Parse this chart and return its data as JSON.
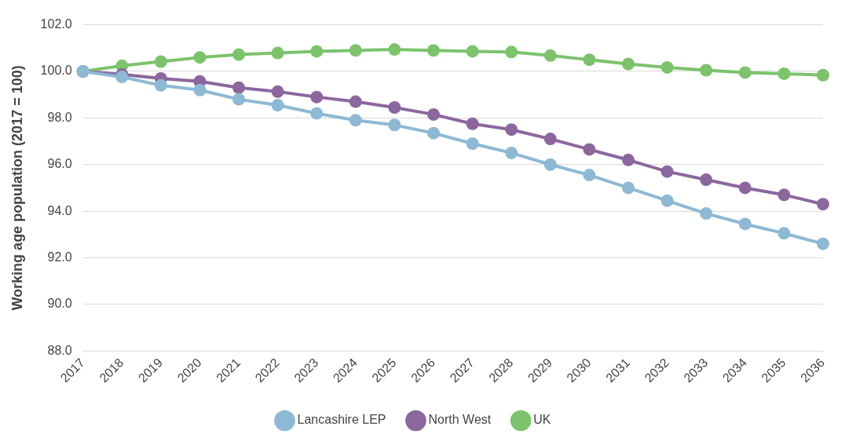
{
  "chart_data": {
    "type": "line",
    "ylabel": "Working age population (2017 = 100)",
    "categories": [
      "2017",
      "2018",
      "2019",
      "2020",
      "2021",
      "2022",
      "2023",
      "2024",
      "2025",
      "2026",
      "2027",
      "2028",
      "2029",
      "2030",
      "2031",
      "2032",
      "2033",
      "2034",
      "2035",
      "2036"
    ],
    "series": [
      {
        "name": "Lancashire LEP",
        "color": "#8db9d4",
        "values": [
          100,
          99.76,
          99.4,
          99.2,
          98.8,
          98.55,
          98.2,
          97.9,
          97.7,
          97.35,
          96.9,
          96.5,
          96.0,
          95.55,
          95.0,
          94.45,
          93.9,
          93.45,
          93.05,
          92.6
        ]
      },
      {
        "name": "North West",
        "color": "#8b679e",
        "values": [
          100,
          99.87,
          99.7,
          99.57,
          99.3,
          99.13,
          98.9,
          98.7,
          98.45,
          98.15,
          97.75,
          97.5,
          97.1,
          96.65,
          96.2,
          95.7,
          95.35,
          95.0,
          94.7,
          94.3
        ]
      },
      {
        "name": "UK",
        "color": "#7cc36c",
        "values": [
          100,
          100.24,
          100.42,
          100.6,
          100.72,
          100.79,
          100.86,
          100.9,
          100.94,
          100.9,
          100.86,
          100.83,
          100.68,
          100.5,
          100.32,
          100.17,
          100.05,
          99.95,
          99.9,
          99.84
        ]
      }
    ],
    "ylim": [
      88,
      102
    ],
    "yticks": [
      {
        "value": 88,
        "label": "88.0"
      },
      {
        "value": 90,
        "label": "90.0"
      },
      {
        "value": 92,
        "label": "92.0"
      },
      {
        "value": 94,
        "label": "94.0"
      },
      {
        "value": 96,
        "label": "96.0"
      },
      {
        "value": 98,
        "label": "98.0"
      },
      {
        "value": 100,
        "label": "100.0"
      },
      {
        "value": 102,
        "label": "102.0"
      }
    ],
    "grid": "y",
    "legend": "bottom",
    "marker": "circle",
    "line_style": "solid"
  }
}
